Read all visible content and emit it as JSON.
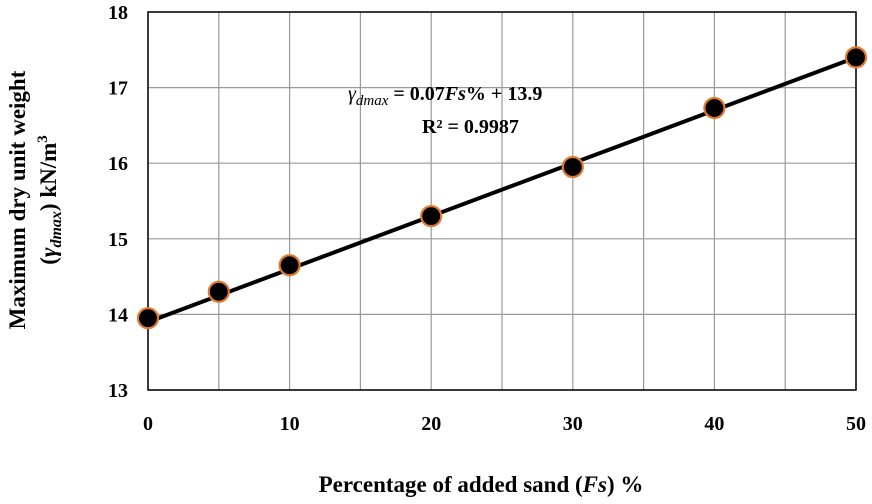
{
  "chart_data": {
    "type": "scatter",
    "xlabel": {
      "prefix": "Percentage of added sand (",
      "italic": "Fs",
      "suffix": ") %"
    },
    "ylabel": {
      "line1": "Maximum dry unit weight",
      "line2_open": "(",
      "line2_gamma": "γ",
      "line2_sub": "dmax",
      "line2_close": ")  kN/m",
      "line2_sup": "3"
    },
    "xlim": [
      0,
      50
    ],
    "ylim": [
      13,
      18
    ],
    "xticks": [
      "0",
      "10",
      "20",
      "30",
      "40",
      "50"
    ],
    "xgrid": [
      0,
      5,
      10,
      15,
      20,
      25,
      30,
      35,
      40,
      45,
      50
    ],
    "yticks": [
      "13",
      "14",
      "15",
      "16",
      "17",
      "18"
    ],
    "grid": true,
    "series": [
      {
        "points": [
          {
            "x": 0,
            "y": 13.95
          },
          {
            "x": 5,
            "y": 14.3
          },
          {
            "x": 10,
            "y": 14.65
          },
          {
            "x": 20,
            "y": 15.3
          },
          {
            "x": 30,
            "y": 15.95
          },
          {
            "x": 40,
            "y": 16.73
          },
          {
            "x": 50,
            "y": 17.4
          }
        ],
        "marker_fill": "#000000",
        "marker_edge": "#e07a2e"
      }
    ],
    "trendline": {
      "slope": 0.07,
      "intercept": 13.9,
      "color": "#000000",
      "equation": {
        "gamma": "γ",
        "sub": "dmax",
        "eq_part1": " = 0.07",
        "eq_italic": "Fs",
        "eq_part2": "% + 13.9"
      },
      "r2_text": "R² = 0.9987"
    }
  }
}
